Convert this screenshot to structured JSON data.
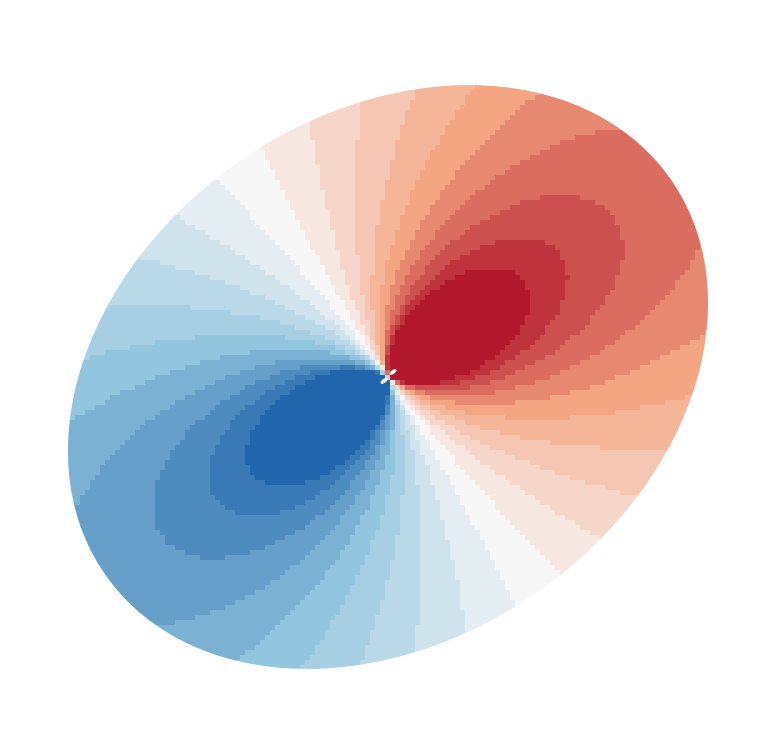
{
  "chart_data": {
    "type": "heatmap",
    "title": "",
    "xlabel": "",
    "ylabel": "",
    "axes_visible": false,
    "grid": false,
    "legend": "none",
    "colormap": "RdBu_r",
    "colors": {
      "positive": "#b2182b",
      "mid_positive": "#f4a582",
      "neutral": "#f7f7f7",
      "mid_negative": "#92c5de",
      "negative": "#2166ac",
      "background": "#ffffff"
    },
    "field": {
      "description_type": "dipole",
      "domain_shape": "ellipse",
      "domain_tilt_deg": 35,
      "value_range": [
        -1,
        1
      ],
      "n_levels": 21,
      "positive_lobe_direction": "upper-right",
      "negative_lobe_direction": "lower-left"
    }
  }
}
